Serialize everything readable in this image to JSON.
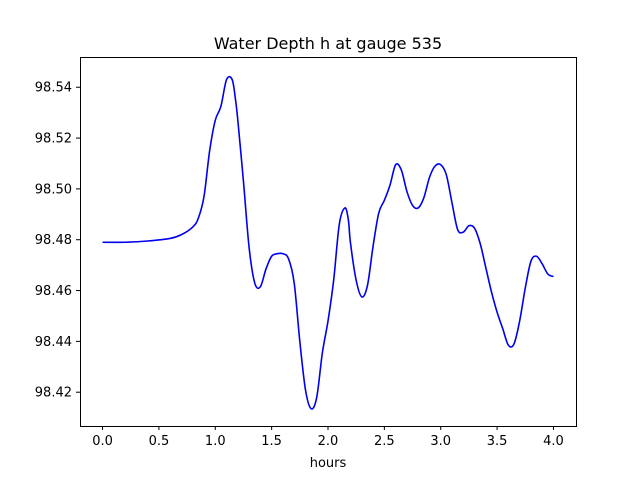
{
  "chart_data": {
    "type": "line",
    "title": "Water Depth h at gauge 535",
    "xlabel": "hours",
    "ylabel": "",
    "xlim": [
      -0.2,
      4.2
    ],
    "ylim": [
      98.4067,
      98.5519
    ],
    "xticks": [
      0.0,
      0.5,
      1.0,
      1.5,
      2.0,
      2.5,
      3.0,
      3.5,
      4.0
    ],
    "xtick_labels": [
      "0.0",
      "0.5",
      "1.0",
      "1.5",
      "2.0",
      "2.5",
      "3.0",
      "3.5",
      "4.0"
    ],
    "yticks": [
      98.42,
      98.44,
      98.46,
      98.48,
      98.5,
      98.52,
      98.54
    ],
    "ytick_labels": [
      "98.42",
      "98.44",
      "98.46",
      "98.48",
      "98.50",
      "98.52",
      "98.54"
    ],
    "grid": false,
    "series": [
      {
        "color": "#0000ee",
        "x": [
          0.0,
          0.2,
          0.4,
          0.6,
          0.7,
          0.8,
          0.85,
          0.9,
          0.95,
          1.0,
          1.05,
          1.1,
          1.15,
          1.18,
          1.2,
          1.25,
          1.3,
          1.35,
          1.4,
          1.45,
          1.5,
          1.55,
          1.6,
          1.65,
          1.7,
          1.75,
          1.8,
          1.85,
          1.9,
          1.95,
          2.0,
          2.05,
          2.1,
          2.15,
          2.18,
          2.2,
          2.25,
          2.3,
          2.35,
          2.4,
          2.45,
          2.5,
          2.55,
          2.6,
          2.65,
          2.7,
          2.75,
          2.8,
          2.85,
          2.9,
          2.95,
          3.0,
          3.05,
          3.1,
          3.15,
          3.2,
          3.25,
          3.3,
          3.35,
          3.4,
          3.45,
          3.5,
          3.55,
          3.6,
          3.65,
          3.7,
          3.75,
          3.8,
          3.85,
          3.9,
          3.95,
          4.0
        ],
        "y": [
          98.479,
          98.479,
          98.4795,
          98.4805,
          98.482,
          98.485,
          98.4885,
          98.497,
          98.515,
          98.527,
          98.5325,
          98.543,
          98.543,
          98.535,
          98.527,
          98.503,
          98.477,
          98.463,
          98.4615,
          98.4685,
          98.4735,
          98.4745,
          98.4745,
          98.4725,
          98.463,
          98.44,
          98.421,
          98.4135,
          98.418,
          98.4355,
          98.448,
          98.464,
          98.486,
          98.4925,
          98.488,
          98.4785,
          98.464,
          98.4575,
          98.462,
          98.4775,
          98.4905,
          98.4955,
          98.5015,
          98.5095,
          98.5075,
          98.499,
          98.4935,
          98.4925,
          98.4965,
          98.5045,
          98.509,
          98.5095,
          98.5055,
          98.4945,
          98.484,
          98.483,
          98.4855,
          98.4845,
          98.4785,
          98.469,
          98.4595,
          98.4515,
          98.445,
          98.4385,
          98.439,
          98.448,
          98.461,
          98.4715,
          98.4735,
          98.4705,
          98.4665,
          98.4655
        ]
      }
    ]
  }
}
